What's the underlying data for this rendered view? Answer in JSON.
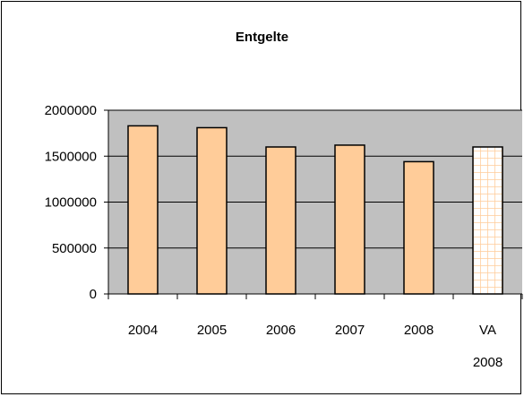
{
  "chart_data": {
    "type": "bar",
    "title": "Entgelte",
    "xlabel": "",
    "ylabel": "",
    "categories": [
      [
        "2004"
      ],
      [
        "2005"
      ],
      [
        "2006"
      ],
      [
        "2007"
      ],
      [
        "2008"
      ],
      [
        "VA",
        "2008"
      ]
    ],
    "values": [
      1830000,
      1810000,
      1600000,
      1620000,
      1440000,
      1600000
    ],
    "hatched": [
      false,
      false,
      false,
      false,
      false,
      true
    ],
    "ylim": [
      0,
      2000000
    ],
    "yticks": [
      "0",
      "500000",
      "1000000",
      "1500000",
      "2000000"
    ],
    "ytick_values": [
      0,
      500000,
      1000000,
      1500000,
      2000000
    ],
    "grid": true,
    "legend": "none",
    "colors": {
      "plot_background": "#c0c0c0",
      "bar_fill": "#ffcc99",
      "bar_stroke": "#000000",
      "gridline": "#000000",
      "hatch_line": "#ffcc99",
      "hatch_background": "#ffffff"
    }
  }
}
